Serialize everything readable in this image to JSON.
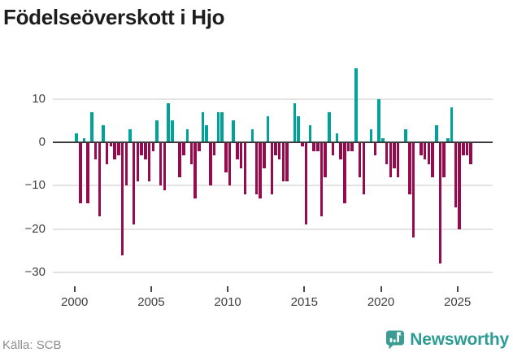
{
  "header": {
    "title": "Födelseöverskott i Hjo"
  },
  "footer": {
    "source": "Källa: SCB",
    "brand": "Newsworthy",
    "brand_color": "#2d9c94"
  },
  "icons": {
    "brand_badge": "bar-chart-speech-bubble-icon"
  },
  "chart_data": {
    "type": "bar",
    "title": "Födelseöverskott i Hjo",
    "xlabel": "",
    "ylabel": "",
    "x_tick_labels": [
      "2000",
      "2005",
      "2010",
      "2015",
      "2020",
      "2025"
    ],
    "y_ticks": [
      10,
      0,
      -10,
      -20,
      -30
    ],
    "ylim": [
      -31,
      18
    ],
    "grid": true,
    "legend": "none",
    "positive_color": "#00a39a",
    "negative_color": "#970a4d",
    "frequency": "quarterly",
    "start": "2000-Q1",
    "end": "2025-Q4",
    "series": [
      {
        "name": "Födelseöverskott",
        "values": [
          2,
          -14,
          1,
          -14,
          7,
          -4,
          -17,
          4,
          -5,
          -1,
          -4,
          -3,
          -26,
          -10,
          3,
          -19,
          -9,
          -3,
          -4,
          -9,
          -2,
          5,
          -10,
          -11,
          9,
          5,
          0,
          -8,
          -3,
          3,
          -5,
          -13,
          -2,
          7,
          4,
          -10,
          -3,
          7,
          7,
          -7,
          -10,
          5,
          -4,
          -6,
          -12,
          0,
          3,
          -12,
          -13,
          -6,
          6,
          -12,
          -3,
          -4,
          -9,
          -9,
          0,
          9,
          6,
          -1,
          -19,
          4,
          -2,
          -2,
          -17,
          -8,
          7,
          -3,
          2,
          -4,
          -14,
          -2,
          -2,
          17,
          -8,
          -12,
          0,
          3,
          -3,
          10,
          1,
          -5,
          -8,
          -6,
          -8,
          0,
          3,
          -12,
          -22,
          0,
          -3,
          -4,
          -5,
          -8,
          4,
          -28,
          -8,
          1,
          8,
          -15,
          -20,
          -3,
          -3,
          -5
        ]
      }
    ]
  }
}
